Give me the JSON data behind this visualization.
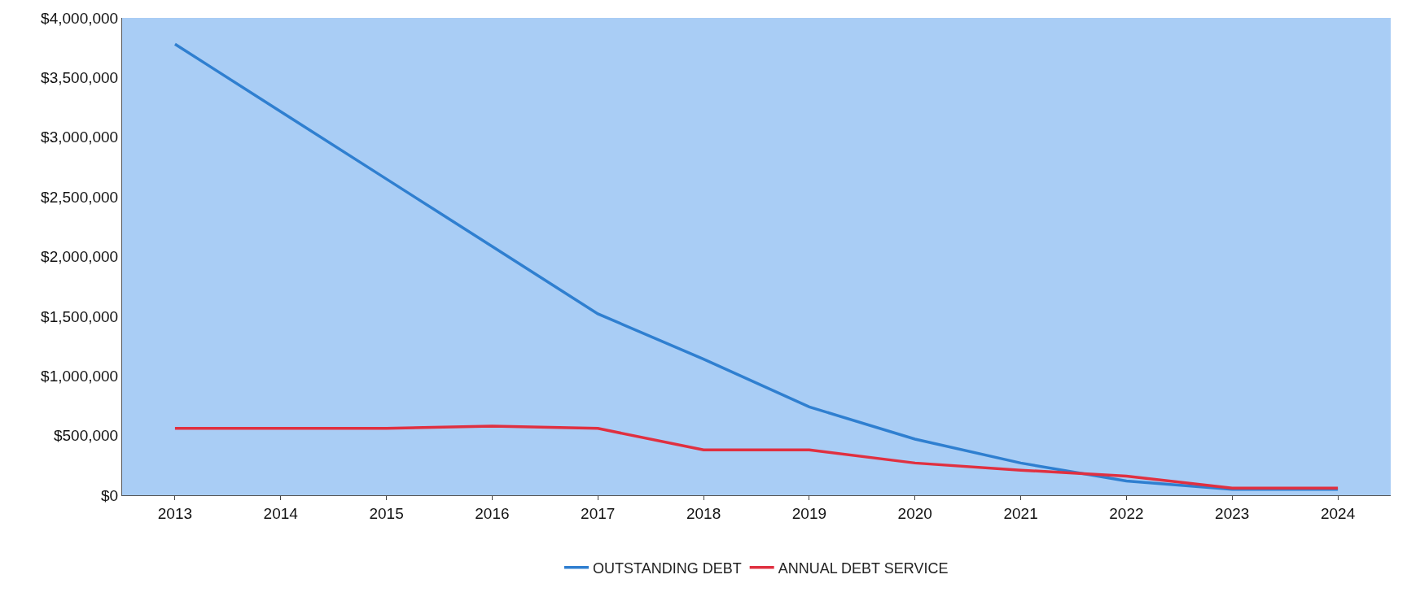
{
  "chart_data": {
    "type": "line",
    "categories": [
      "2013",
      "2014",
      "2015",
      "2016",
      "2017",
      "2018",
      "2019",
      "2020",
      "2021",
      "2022",
      "2023",
      "2024"
    ],
    "series": [
      {
        "name": "OUTSTANDING DEBT",
        "color": "#2f7fd0",
        "values": [
          3780000,
          3215000,
          2650000,
          2085000,
          1520000,
          1140000,
          740000,
          470000,
          270000,
          120000,
          50000,
          50000
        ]
      },
      {
        "name": "ANNUAL DEBT SERVICE",
        "color": "#e03040",
        "values": [
          560000,
          560000,
          560000,
          580000,
          560000,
          380000,
          380000,
          270000,
          210000,
          160000,
          60000,
          60000
        ]
      }
    ],
    "ylim": [
      0,
      4000000
    ],
    "yticks": [
      {
        "value": 0,
        "label": "$0"
      },
      {
        "value": 500000,
        "label": "$500,000"
      },
      {
        "value": 1000000,
        "label": "$1,000,000"
      },
      {
        "value": 1500000,
        "label": "$1,500,000"
      },
      {
        "value": 2000000,
        "label": "$2,000,000"
      },
      {
        "value": 2500000,
        "label": "$2,500,000"
      },
      {
        "value": 3000000,
        "label": "$3,000,000"
      },
      {
        "value": 3500000,
        "label": "$3,500,000"
      },
      {
        "value": 4000000,
        "label": "$4,000,000"
      }
    ],
    "grid": false,
    "legend": "bottom",
    "marker": "none",
    "line_style": "solid"
  }
}
